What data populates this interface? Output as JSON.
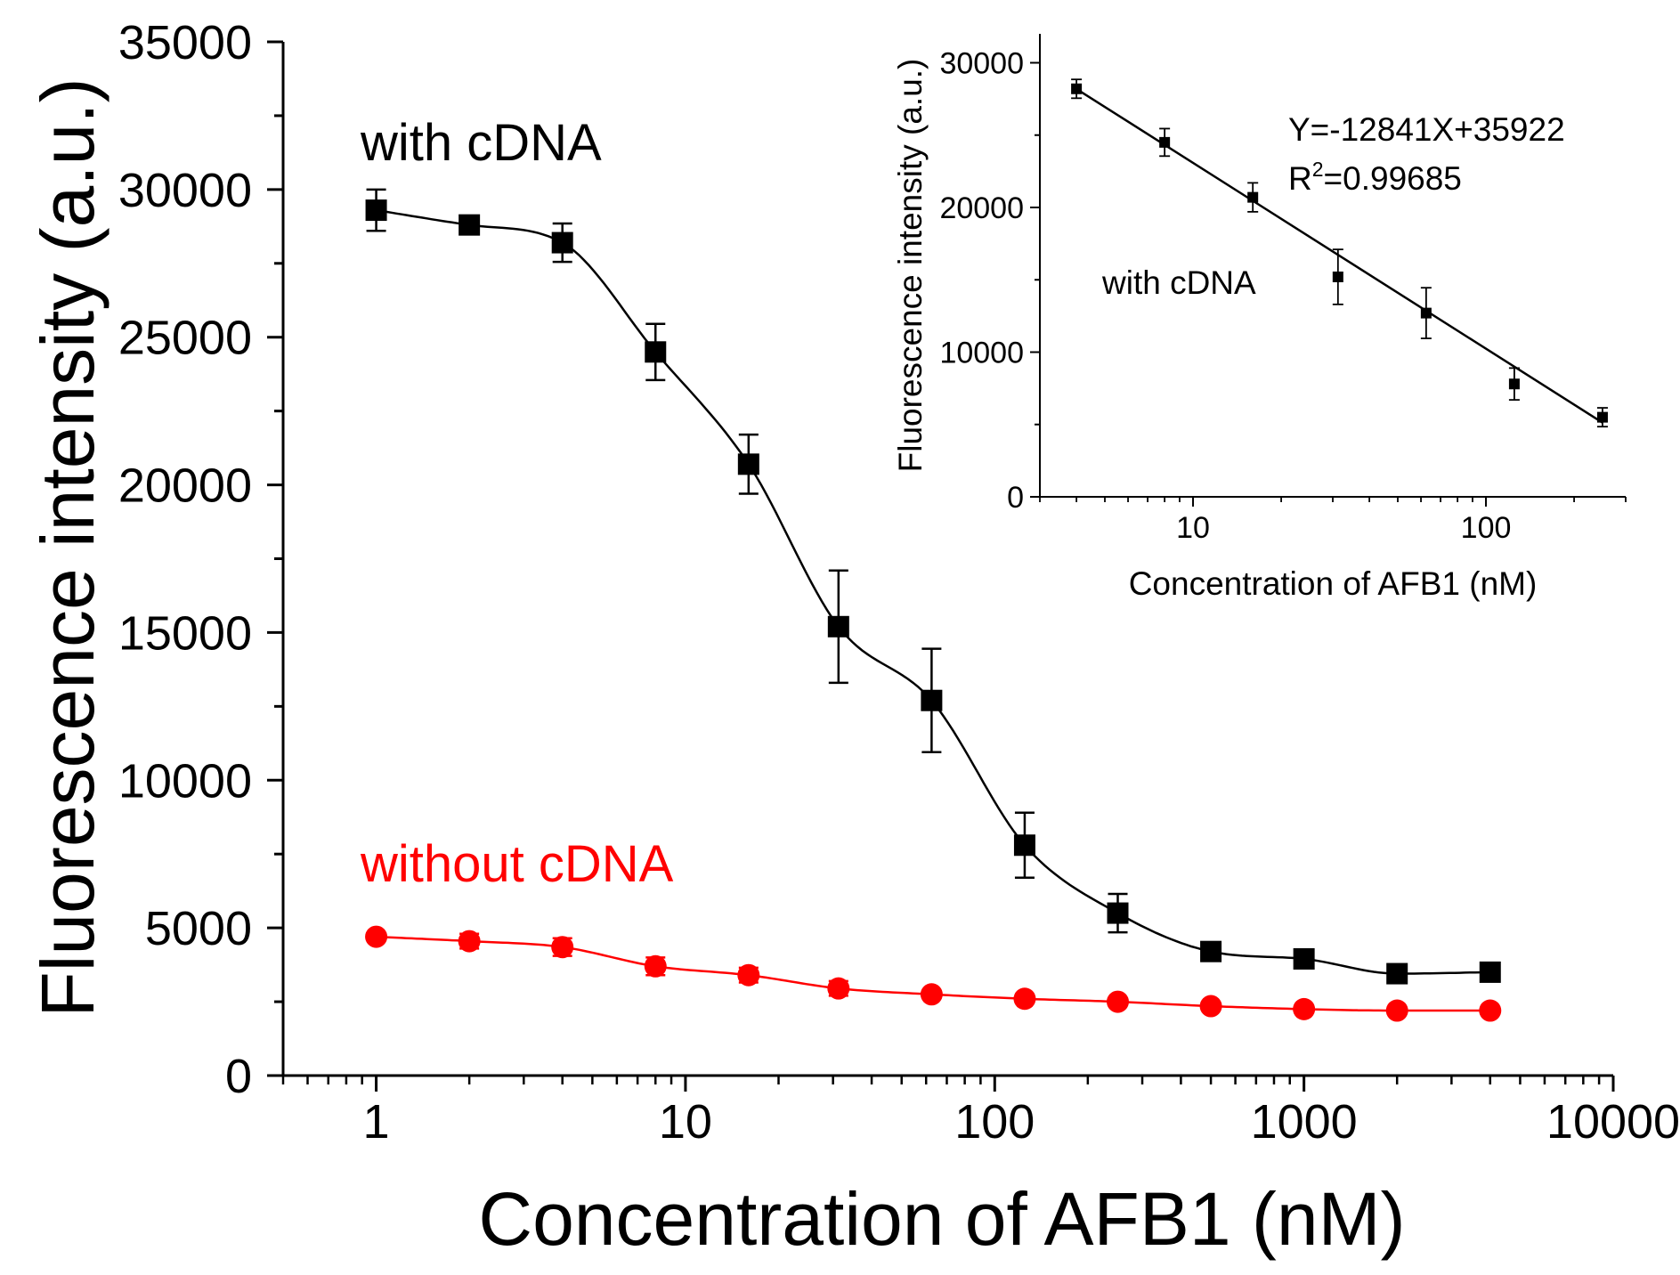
{
  "chart_data": [
    {
      "id": "main",
      "type": "scatter",
      "xscale": "log",
      "xlabel": "Concentration of AFB1 (nM)",
      "ylabel": "Fluorescence intensity (a.u.)",
      "xlim": [
        0.5,
        10000
      ],
      "ylim": [
        0,
        35000
      ],
      "xticks": [
        1,
        10,
        100,
        1000,
        10000
      ],
      "xtick_labels": [
        "1",
        "10",
        "100",
        "1000",
        "10000"
      ],
      "yticks": [
        0,
        5000,
        10000,
        15000,
        20000,
        25000,
        30000,
        35000
      ],
      "ytick_labels": [
        "0",
        "5000",
        "10000",
        "15000",
        "20000",
        "25000",
        "30000",
        "35000"
      ],
      "series": [
        {
          "name": "with cDNA",
          "color": "#000000",
          "marker": "square",
          "x": [
            1,
            2,
            4,
            8,
            16,
            31.25,
            62.5,
            125,
            250,
            500,
            1000,
            2000,
            4000
          ],
          "y": [
            29300,
            28800,
            28200,
            24500,
            20700,
            15200,
            12700,
            7800,
            5500,
            4200,
            3950,
            3450,
            3500
          ],
          "error": [
            700,
            250,
            650,
            950,
            1000,
            1900,
            1750,
            1100,
            650,
            0,
            0,
            0,
            0
          ],
          "fit": "sigmoid"
        },
        {
          "name": "without cDNA",
          "color": "#ff0000",
          "marker": "circle",
          "x": [
            1,
            2,
            4,
            8,
            16,
            31.25,
            62.5,
            125,
            250,
            500,
            1000,
            2000,
            4000
          ],
          "y": [
            4700,
            4550,
            4350,
            3700,
            3400,
            2950,
            2750,
            2600,
            2500,
            2350,
            2250,
            2200,
            2200
          ],
          "error": [
            0,
            250,
            300,
            300,
            250,
            250,
            0,
            0,
            0,
            0,
            0,
            0,
            0
          ],
          "fit": "sigmoid"
        }
      ],
      "annotations": [
        {
          "text": "with cDNA",
          "color": "#000000"
        },
        {
          "text": "without cDNA",
          "color": "#ff0000"
        }
      ]
    },
    {
      "id": "inset",
      "type": "scatter",
      "xscale": "log",
      "xlabel": "Concentration of AFB1 (nM)",
      "ylabel": "Fluorescence intensity (a.u.)",
      "xlim": [
        3,
        300
      ],
      "ylim": [
        0,
        32000
      ],
      "xticks": [
        10,
        100
      ],
      "xtick_labels": [
        "10",
        "100"
      ],
      "yticks": [
        0,
        10000,
        20000,
        30000
      ],
      "ytick_labels": [
        "0",
        "10000",
        "20000",
        "30000"
      ],
      "series": [
        {
          "name": "with cDNA",
          "color": "#000000",
          "marker": "square",
          "x": [
            4,
            8,
            16,
            31.25,
            62.5,
            125,
            250
          ],
          "y": [
            28200,
            24500,
            20700,
            15200,
            12700,
            7800,
            5500
          ],
          "error": [
            650,
            950,
            1000,
            1900,
            1750,
            1100,
            650
          ]
        }
      ],
      "fit": {
        "slope": -12841,
        "intercept": 35922
      },
      "equation": "Y=-12841X+35922",
      "r2_prefix": "R",
      "r2_sup": "2",
      "r2_value": "=0.99685",
      "annotation": "with cDNA"
    }
  ]
}
